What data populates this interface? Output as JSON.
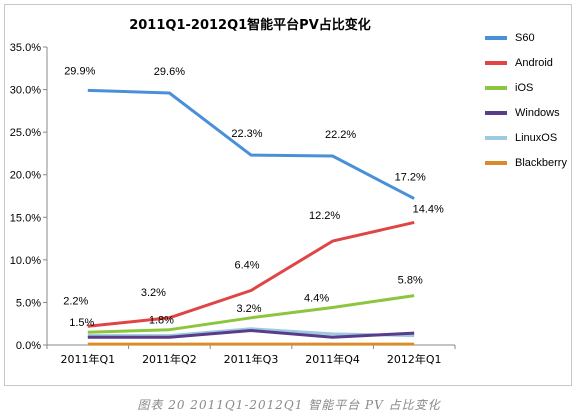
{
  "chart_data": {
    "type": "line",
    "title": "2011Q1-2012Q1智能平台PV占比变化",
    "categories": [
      "2011年Q1",
      "2011年Q2",
      "2011年Q3",
      "2011年Q4",
      "2012年Q1"
    ],
    "ylim": [
      0,
      35
    ],
    "yticks": [
      "0.0%",
      "5.0%",
      "10.0%",
      "15.0%",
      "20.0%",
      "25.0%",
      "30.0%",
      "35.0%"
    ],
    "ytick_values": [
      0,
      5,
      10,
      15,
      20,
      25,
      30,
      35
    ],
    "grid": false,
    "legend_position": "right",
    "series": [
      {
        "name": "S60",
        "color": "#4a90d9",
        "values": [
          29.9,
          29.6,
          22.3,
          22.2,
          17.2
        ],
        "labels": [
          "29.9%",
          "29.6%",
          "22.3%",
          "22.2%",
          "17.2%"
        ]
      },
      {
        "name": "Android",
        "color": "#e04545",
        "values": [
          2.2,
          3.2,
          6.4,
          12.2,
          14.4
        ],
        "labels": [
          "2.2%",
          "3.2%",
          "6.4%",
          "12.2%",
          "14.4%"
        ]
      },
      {
        "name": "iOS",
        "color": "#8cc63f",
        "values": [
          1.5,
          1.8,
          3.2,
          4.4,
          5.8
        ],
        "labels": [
          "1.5%",
          "1.8%",
          "3.2%",
          "4.4%",
          "5.8%"
        ]
      },
      {
        "name": "Windows",
        "color": "#5a3d8a",
        "values": [
          0.9,
          0.9,
          1.7,
          0.9,
          1.4
        ],
        "labels": []
      },
      {
        "name": "LinuxOS",
        "color": "#9ecae1",
        "values": [
          1.1,
          1.1,
          1.9,
          1.3,
          1.1
        ],
        "labels": []
      },
      {
        "name": "Blackberry",
        "color": "#d98c2b",
        "values": [
          0.1,
          0.1,
          0.1,
          0.1,
          0.1
        ],
        "labels": []
      }
    ]
  },
  "caption": "图表 20   2011Q1-2012Q1 智能平台 PV 占比变化"
}
